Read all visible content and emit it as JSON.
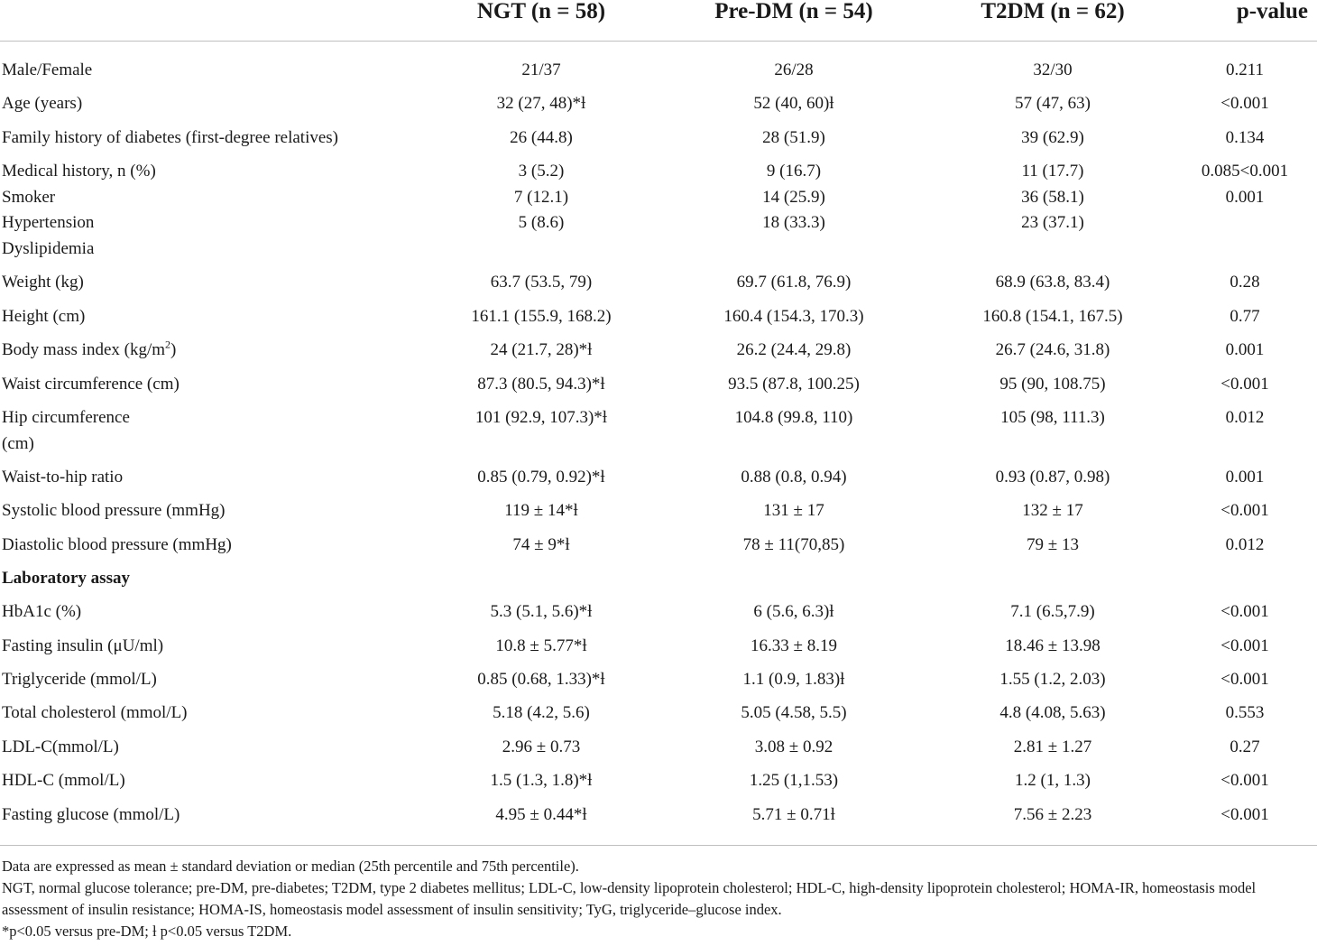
{
  "columns": [
    "NGT (n = 58)",
    "Pre-DM (n = 54)",
    "T2DM (n = 62)",
    "p-value"
  ],
  "rows": [
    {
      "label": "Male/Female",
      "values": [
        "21/37",
        "26/28",
        "32/30",
        "0.211"
      ]
    },
    {
      "label": "Age (years)",
      "values": [
        "32 (27, 48)*ƚ",
        "52 (40, 60)ƚ",
        "57 (47, 63)",
        "<0.001"
      ]
    },
    {
      "label": "Family history of diabetes (first-degree relatives)",
      "values": [
        "26 (44.8)",
        "28 (51.9)",
        "39 (62.9)",
        "0.134"
      ]
    },
    {
      "label": "Medical history, n (%)",
      "values": [
        "3 (5.2)",
        "9 (16.7)",
        "11 (17.7)",
        "0.085<0.001"
      ]
    },
    {
      "label": "Smoker",
      "values": [
        "7 (12.1)",
        "14 (25.9)",
        "36 (58.1)",
        "0.001"
      ]
    },
    {
      "label": "Hypertension",
      "values": [
        "5 (8.6)",
        "18 (33.3)",
        "23 (37.1)",
        ""
      ]
    },
    {
      "label": "Dyslipidemia",
      "values": [
        "",
        "",
        "",
        ""
      ]
    },
    {
      "label": "Weight (kg)",
      "values": [
        "63.7 (53.5, 79)",
        "69.7 (61.8, 76.9)",
        "68.9 (63.8, 83.4)",
        "0.28"
      ]
    },
    {
      "label": "Height (cm)",
      "values": [
        "161.1 (155.9, 168.2)",
        "160.4 (154.3, 170.3)",
        "160.8 (154.1, 167.5)",
        "0.77"
      ]
    },
    {
      "label": "Body mass index (kg/m",
      "label_sup": "2",
      "label_suffix": ")",
      "values": [
        "24 (21.7, 28)*ƚ",
        "26.2 (24.4, 29.8)",
        "26.7 (24.6, 31.8)",
        "0.001"
      ]
    },
    {
      "label": "Waist circumference (cm)",
      "values": [
        "87.3 (80.5, 94.3)*ƚ",
        "93.5 (87.8, 100.25)",
        "95 (90, 108.75)",
        "<0.001"
      ]
    },
    {
      "label": "Hip circumference",
      "values": [
        "101 (92.9, 107.3)*ƚ",
        "104.8 (99.8, 110)",
        "105 (98, 111.3)",
        "0.012"
      ]
    },
    {
      "label": "(cm)",
      "values": [
        "",
        "",
        "",
        ""
      ]
    },
    {
      "label": "Waist-to-hip ratio",
      "values": [
        "0.85 (0.79, 0.92)*ƚ",
        "0.88 (0.8, 0.94)",
        "0.93 (0.87, 0.98)",
        "0.001"
      ]
    },
    {
      "label": "Systolic blood pressure (mmHg)",
      "values": [
        "119 ± 14*ƚ",
        "131 ± 17",
        "132 ± 17",
        "<0.001"
      ]
    },
    {
      "label": "Diastolic blood pressure (mmHg)",
      "values": [
        "74 ± 9*ƚ",
        "78 ± 11(70,85)",
        "79 ± 13",
        "0.012"
      ]
    },
    {
      "label": "Laboratory assay",
      "section": true,
      "values": [
        "",
        "",
        "",
        ""
      ]
    },
    {
      "label": "HbA1c (%)",
      "values": [
        "5.3 (5.1, 5.6)*ƚ",
        "6 (5.6, 6.3)ƚ",
        "7.1 (6.5,7.9)",
        "<0.001"
      ]
    },
    {
      "label": "Fasting insulin (μU/ml)",
      "values": [
        "10.8 ± 5.77*ƚ",
        "16.33 ± 8.19",
        "18.46 ± 13.98",
        "<0.001"
      ]
    },
    {
      "label": "Triglyceride (mmol/L)",
      "values": [
        "0.85 (0.68, 1.33)*ƚ",
        "1.1 (0.9, 1.83)ƚ",
        "1.55 (1.2, 2.03)",
        "<0.001"
      ]
    },
    {
      "label": "Total cholesterol (mmol/L)",
      "values": [
        "5.18 (4.2, 5.6)",
        "5.05 (4.58, 5.5)",
        "4.8 (4.08, 5.63)",
        "0.553"
      ]
    },
    {
      "label": "LDL-C(mmol/L)",
      "values": [
        "2.96 ± 0.73",
        "3.08 ± 0.92",
        "2.81 ± 1.27",
        "0.27"
      ]
    },
    {
      "label": "HDL-C (mmol/L)",
      "values": [
        "1.5 (1.3, 1.8)*ƚ",
        "1.25 (1,1.53)",
        "1.2 (1, 1.3)",
        "<0.001"
      ]
    },
    {
      "label": "Fasting glucose (mmol/L)",
      "values": [
        "4.95 ± 0.44*ƚ",
        "5.71 ± 0.71ƚ",
        "7.56 ± 2.23",
        "<0.001"
      ]
    }
  ],
  "footnotes": [
    "Data are expressed as mean ± standard deviation or median (25th percentile and 75th percentile).",
    "NGT, normal glucose tolerance; pre-DM, pre-diabetes; T2DM, type 2 diabetes mellitus; LDL-C, low-density lipoprotein cholesterol; HDL-C, high-density lipoprotein cholesterol; HOMA-IR, homeostasis model assessment of insulin resistance; HOMA-IS, homeostasis model assessment of insulin sensitivity; TyG, triglyceride–glucose index.",
    "*p<0.05 versus pre-DM; ƚ p<0.05 versus T2DM."
  ]
}
